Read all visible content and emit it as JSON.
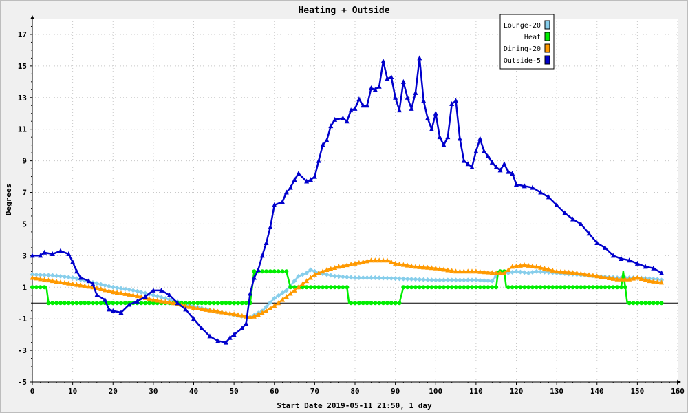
{
  "chart_data": {
    "type": "line",
    "title": "Heating + Outside",
    "xlabel": "Start Date 2019-05-11 21:50, 1 day",
    "ylabel": "Degrees",
    "xlim": [
      0,
      160
    ],
    "ylim": [
      -5,
      18
    ],
    "x_ticks": [
      0,
      10,
      20,
      30,
      40,
      50,
      60,
      70,
      80,
      90,
      100,
      110,
      120,
      130,
      140,
      150,
      160
    ],
    "y_ticks": [
      -5,
      -3,
      -1,
      1,
      3,
      5,
      7,
      9,
      11,
      13,
      15,
      17
    ],
    "x_tick_labels": [
      "0",
      "10",
      "20",
      "30",
      "40",
      "50",
      "60",
      "70",
      "80",
      "90",
      "100",
      "110",
      "120",
      "130",
      "140",
      "150",
      "160"
    ],
    "y_tick_labels": [
      "-5",
      "-3",
      "-1",
      "1",
      "3",
      "5",
      "7",
      "9",
      "11",
      "13",
      "15",
      "17"
    ],
    "grid": true,
    "legend_position": "top-right",
    "series": [
      {
        "name": "Lounge-20",
        "color": "#87ceeb",
        "marker": "diamond",
        "points": [
          [
            0,
            1.8
          ],
          [
            5,
            1.75
          ],
          [
            10,
            1.6
          ],
          [
            15,
            1.3
          ],
          [
            20,
            1.0
          ],
          [
            25,
            0.8
          ],
          [
            30,
            0.5
          ],
          [
            35,
            0.15
          ],
          [
            40,
            -0.2
          ],
          [
            45,
            -0.5
          ],
          [
            50,
            -0.75
          ],
          [
            54,
            -0.9
          ],
          [
            57,
            -0.5
          ],
          [
            60,
            0.3
          ],
          [
            63,
            0.8
          ],
          [
            66,
            1.7
          ],
          [
            68,
            1.9
          ],
          [
            69,
            2.1
          ],
          [
            71,
            1.9
          ],
          [
            75,
            1.7
          ],
          [
            80,
            1.6
          ],
          [
            85,
            1.6
          ],
          [
            90,
            1.55
          ],
          [
            95,
            1.5
          ],
          [
            100,
            1.45
          ],
          [
            105,
            1.45
          ],
          [
            110,
            1.45
          ],
          [
            114,
            1.4
          ],
          [
            116,
            2.0
          ],
          [
            118,
            1.9
          ],
          [
            120,
            2.0
          ],
          [
            123,
            1.9
          ],
          [
            125,
            2.0
          ],
          [
            130,
            1.9
          ],
          [
            135,
            1.8
          ],
          [
            140,
            1.7
          ],
          [
            145,
            1.6
          ],
          [
            150,
            1.6
          ],
          [
            155,
            1.5
          ],
          [
            156,
            1.45
          ]
        ]
      },
      {
        "name": "Heat",
        "color": "#00ee00",
        "marker": "circle",
        "points": [
          [
            0,
            1
          ],
          [
            3.5,
            1
          ],
          [
            4,
            0
          ],
          [
            54,
            0
          ],
          [
            55,
            2
          ],
          [
            63,
            2
          ],
          [
            64,
            1
          ],
          [
            78,
            1
          ],
          [
            78.5,
            0
          ],
          [
            91,
            0
          ],
          [
            92,
            1
          ],
          [
            115,
            1
          ],
          [
            115.5,
            2
          ],
          [
            117,
            2
          ],
          [
            117.5,
            1
          ],
          [
            146,
            1
          ],
          [
            146.5,
            2
          ],
          [
            147.5,
            0
          ],
          [
            156,
            0
          ]
        ]
      },
      {
        "name": "Dining-20",
        "color": "#ff9900",
        "marker": "triangle",
        "points": [
          [
            0,
            1.6
          ],
          [
            5,
            1.4
          ],
          [
            10,
            1.2
          ],
          [
            15,
            1.0
          ],
          [
            20,
            0.7
          ],
          [
            25,
            0.5
          ],
          [
            30,
            0.2
          ],
          [
            35,
            0.0
          ],
          [
            40,
            -0.3
          ],
          [
            45,
            -0.5
          ],
          [
            50,
            -0.7
          ],
          [
            54,
            -0.9
          ],
          [
            55,
            -0.85
          ],
          [
            58,
            -0.5
          ],
          [
            61,
            0.0
          ],
          [
            64,
            0.6
          ],
          [
            67,
            1.2
          ],
          [
            70,
            1.8
          ],
          [
            73,
            2.1
          ],
          [
            76,
            2.3
          ],
          [
            80,
            2.5
          ],
          [
            84,
            2.7
          ],
          [
            88,
            2.7
          ],
          [
            90,
            2.5
          ],
          [
            95,
            2.3
          ],
          [
            100,
            2.2
          ],
          [
            105,
            2.0
          ],
          [
            110,
            2.0
          ],
          [
            115,
            1.9
          ],
          [
            117,
            1.9
          ],
          [
            119,
            2.3
          ],
          [
            122,
            2.4
          ],
          [
            125,
            2.3
          ],
          [
            130,
            2.0
          ],
          [
            135,
            1.9
          ],
          [
            140,
            1.7
          ],
          [
            145,
            1.5
          ],
          [
            148,
            1.5
          ],
          [
            150,
            1.6
          ],
          [
            153,
            1.4
          ],
          [
            156,
            1.3
          ]
        ]
      },
      {
        "name": "Outside-5",
        "color": "#0000cc",
        "marker": "triangle",
        "points": [
          [
            0,
            3.0
          ],
          [
            2,
            3.0
          ],
          [
            3,
            3.2
          ],
          [
            5,
            3.1
          ],
          [
            7,
            3.3
          ],
          [
            9,
            3.1
          ],
          [
            10,
            2.6
          ],
          [
            11,
            2.0
          ],
          [
            12,
            1.6
          ],
          [
            14,
            1.4
          ],
          [
            15,
            1.2
          ],
          [
            16,
            0.5
          ],
          [
            18,
            0.2
          ],
          [
            19,
            -0.4
          ],
          [
            20,
            -0.5
          ],
          [
            22,
            -0.6
          ],
          [
            24,
            -0.1
          ],
          [
            26,
            0.1
          ],
          [
            28,
            0.4
          ],
          [
            30,
            0.8
          ],
          [
            32,
            0.8
          ],
          [
            34,
            0.5
          ],
          [
            36,
            0.0
          ],
          [
            38,
            -0.4
          ],
          [
            40,
            -1.0
          ],
          [
            42,
            -1.6
          ],
          [
            44,
            -2.1
          ],
          [
            46,
            -2.4
          ],
          [
            48,
            -2.5
          ],
          [
            49,
            -2.2
          ],
          [
            50,
            -2.0
          ],
          [
            52,
            -1.6
          ],
          [
            53,
            -1.3
          ],
          [
            54,
            0.6
          ],
          [
            55,
            1.6
          ],
          [
            56,
            2.1
          ],
          [
            57,
            3.0
          ],
          [
            58,
            3.8
          ],
          [
            59,
            4.8
          ],
          [
            60,
            6.2
          ],
          [
            62,
            6.4
          ],
          [
            63,
            7.0
          ],
          [
            64,
            7.3
          ],
          [
            65,
            7.8
          ],
          [
            66,
            8.2
          ],
          [
            68,
            7.7
          ],
          [
            69,
            7.8
          ],
          [
            70,
            8.0
          ],
          [
            71,
            9.0
          ],
          [
            72,
            10.0
          ],
          [
            73,
            10.3
          ],
          [
            74,
            11.2
          ],
          [
            75,
            11.6
          ],
          [
            77,
            11.7
          ],
          [
            78,
            11.5
          ],
          [
            79,
            12.2
          ],
          [
            80,
            12.3
          ],
          [
            81,
            12.9
          ],
          [
            82,
            12.5
          ],
          [
            83,
            12.5
          ],
          [
            84,
            13.6
          ],
          [
            85,
            13.5
          ],
          [
            86,
            13.7
          ],
          [
            87,
            15.3
          ],
          [
            88,
            14.2
          ],
          [
            89,
            14.3
          ],
          [
            90,
            13.0
          ],
          [
            91,
            12.2
          ],
          [
            92,
            14.0
          ],
          [
            93,
            13.0
          ],
          [
            94,
            12.3
          ],
          [
            95,
            13.3
          ],
          [
            96,
            15.5
          ],
          [
            97,
            12.8
          ],
          [
            98,
            11.7
          ],
          [
            99,
            11.0
          ],
          [
            100,
            12.0
          ],
          [
            101,
            10.5
          ],
          [
            102,
            10.0
          ],
          [
            103,
            10.5
          ],
          [
            104,
            12.6
          ],
          [
            105,
            12.8
          ],
          [
            106,
            10.4
          ],
          [
            107,
            9.0
          ],
          [
            108,
            8.8
          ],
          [
            109,
            8.6
          ],
          [
            110,
            9.6
          ],
          [
            111,
            10.4
          ],
          [
            112,
            9.6
          ],
          [
            113,
            9.3
          ],
          [
            114,
            8.9
          ],
          [
            115,
            8.6
          ],
          [
            116,
            8.4
          ],
          [
            117,
            8.8
          ],
          [
            118,
            8.3
          ],
          [
            119,
            8.2
          ],
          [
            120,
            7.5
          ],
          [
            122,
            7.4
          ],
          [
            124,
            7.3
          ],
          [
            126,
            7.0
          ],
          [
            128,
            6.7
          ],
          [
            130,
            6.2
          ],
          [
            132,
            5.7
          ],
          [
            134,
            5.3
          ],
          [
            136,
            5.0
          ],
          [
            138,
            4.4
          ],
          [
            140,
            3.8
          ],
          [
            142,
            3.5
          ],
          [
            144,
            3.0
          ],
          [
            146,
            2.8
          ],
          [
            148,
            2.7
          ],
          [
            150,
            2.5
          ],
          [
            152,
            2.3
          ],
          [
            154,
            2.2
          ],
          [
            156,
            1.9
          ]
        ]
      }
    ]
  }
}
